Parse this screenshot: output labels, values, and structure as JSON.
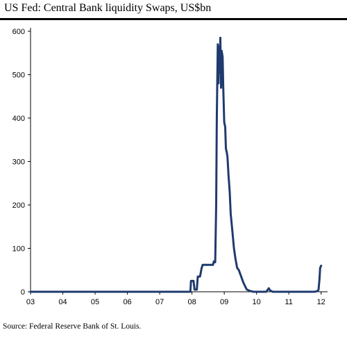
{
  "chart_data": {
    "type": "line",
    "title": "US Fed: Central Bank liquidity Swaps, US$bn",
    "xlabel": "",
    "ylabel": "",
    "source": "Source: Federal Reserve Bank of St. Louis.",
    "xlim": [
      2003,
      2012.2
    ],
    "ylim": [
      0,
      600
    ],
    "x_ticks": [
      {
        "label": "03",
        "value": 2003
      },
      {
        "label": "04",
        "value": 2004
      },
      {
        "label": "05",
        "value": 2005
      },
      {
        "label": "06",
        "value": 2006
      },
      {
        "label": "07",
        "value": 2007
      },
      {
        "label": "08",
        "value": 2008
      },
      {
        "label": "09",
        "value": 2009
      },
      {
        "label": "10",
        "value": 2010
      },
      {
        "label": "11",
        "value": 2011
      },
      {
        "label": "12",
        "value": 2012
      }
    ],
    "y_ticks": [
      {
        "label": "0",
        "value": 0
      },
      {
        "label": "100",
        "value": 100
      },
      {
        "label": "200",
        "value": 200
      },
      {
        "label": "300",
        "value": 300
      },
      {
        "label": "400",
        "value": 400
      },
      {
        "label": "500",
        "value": 500
      },
      {
        "label": "600",
        "value": 600
      }
    ],
    "grid": false,
    "colors": {
      "line": "#1f3a6e",
      "axis": "#000000"
    },
    "series": [
      {
        "x": [
          2003.0,
          2007.95,
          2007.97,
          2008.05,
          2008.08,
          2008.15,
          2008.18,
          2008.25,
          2008.3,
          2008.33,
          2008.45,
          2008.52,
          2008.6,
          2008.65,
          2008.68,
          2008.72,
          2008.75,
          2008.77,
          2008.8,
          2008.82,
          2008.84,
          2008.86,
          2008.88,
          2008.9,
          2008.92,
          2008.95,
          2008.97,
          2009.0,
          2009.03,
          2009.05,
          2009.08,
          2009.1,
          2009.13,
          2009.15,
          2009.17,
          2009.2,
          2009.25,
          2009.3,
          2009.35,
          2009.4,
          2009.45,
          2009.5,
          2009.55,
          2009.6,
          2009.65,
          2009.7,
          2009.8,
          2009.9,
          2010.0,
          2010.05,
          2010.3,
          2010.38,
          2010.42,
          2010.5,
          2011.0,
          2011.8,
          2011.9,
          2011.92,
          2011.95,
          2011.97,
          2012.0
        ],
        "values": [
          0,
          0,
          25,
          25,
          5,
          5,
          35,
          35,
          55,
          62,
          62,
          62,
          62,
          62,
          70,
          68,
          200,
          400,
          570,
          480,
          565,
          505,
          585,
          470,
          555,
          540,
          470,
          390,
          380,
          330,
          320,
          310,
          270,
          250,
          230,
          180,
          140,
          100,
          75,
          55,
          50,
          40,
          30,
          20,
          12,
          5,
          2,
          0,
          0,
          0,
          0,
          8,
          3,
          0,
          0,
          0,
          2,
          5,
          30,
          55,
          60
        ]
      }
    ]
  }
}
